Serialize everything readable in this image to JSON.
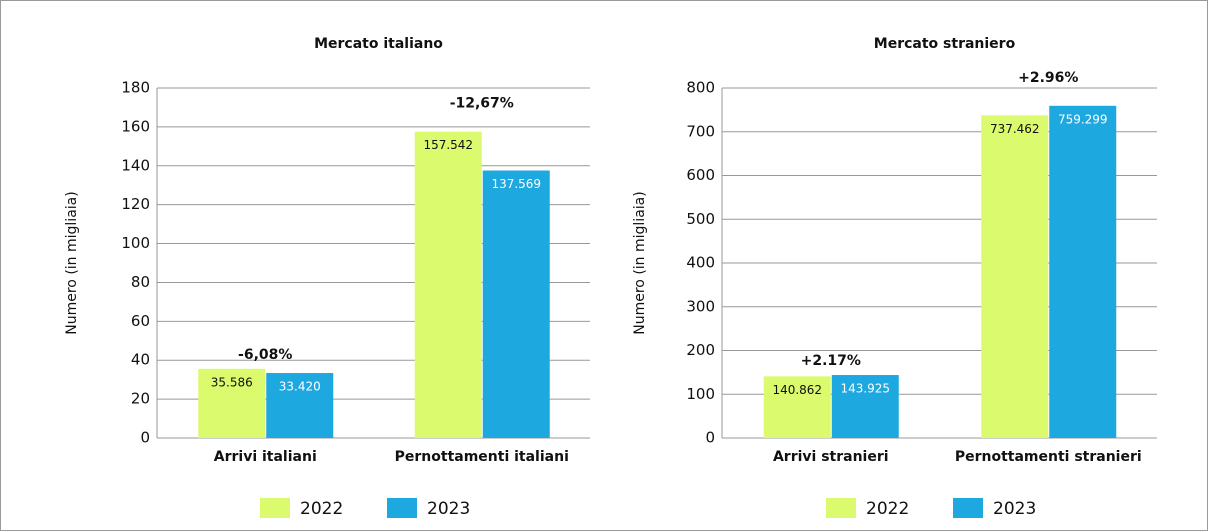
{
  "chart_data": [
    {
      "type": "bar",
      "title": "Mercato italiano",
      "y_label": "Numero (in migliaia)",
      "categories": [
        "Arrivi italiani",
        "Pernottamenti italiani"
      ],
      "series": [
        {
          "name": "2022",
          "color": "#dcfa6e",
          "values": [
            35.586,
            157.542
          ],
          "value_labels": [
            "35.586",
            "157.542"
          ]
        },
        {
          "name": "2023",
          "color": "#1ea8e0",
          "values": [
            33.42,
            137.569
          ],
          "value_labels": [
            "33.420",
            "137.569"
          ]
        }
      ],
      "annotations": [
        "-6,08%",
        "-12,67%"
      ],
      "ylim": [
        0,
        180
      ],
      "yticks": [
        0,
        20,
        40,
        60,
        80,
        100,
        120,
        140,
        160,
        180
      ],
      "grid": true
    },
    {
      "type": "bar",
      "title": "Mercato straniero",
      "y_label": "Numero (in migliaia)",
      "categories": [
        "Arrivi stranieri",
        "Pernottamenti stranieri"
      ],
      "series": [
        {
          "name": "2022",
          "color": "#dcfa6e",
          "values": [
            140.862,
            737.462
          ],
          "value_labels": [
            "140.862",
            "737.462"
          ]
        },
        {
          "name": "2023",
          "color": "#1ea8e0",
          "values": [
            143.925,
            759.299
          ],
          "value_labels": [
            "143.925",
            "759.299"
          ]
        }
      ],
      "annotations": [
        "+2.17%",
        "+2.96%"
      ],
      "ylim": [
        0,
        800
      ],
      "yticks": [
        0,
        100,
        200,
        300,
        400,
        500,
        600,
        700,
        800
      ],
      "grid": true
    }
  ]
}
